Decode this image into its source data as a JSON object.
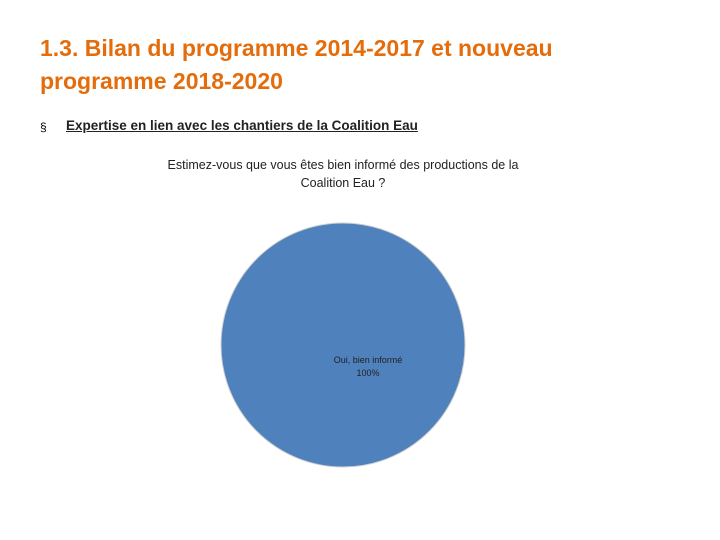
{
  "title": "1.3. Bilan du programme 2014-2017 et nouveau programme 2018-2020",
  "bullet": "Expertise en lien avec les chantiers de la Coalition Eau",
  "chart_data": {
    "type": "pie",
    "title": "Estimez-vous que vous êtes bien informé des productions de la Coalition Eau ?",
    "categories": [
      "Oui, bien informé"
    ],
    "values": [
      100
    ],
    "value_labels": [
      "100%"
    ],
    "colors": [
      "#4f81bd"
    ]
  }
}
